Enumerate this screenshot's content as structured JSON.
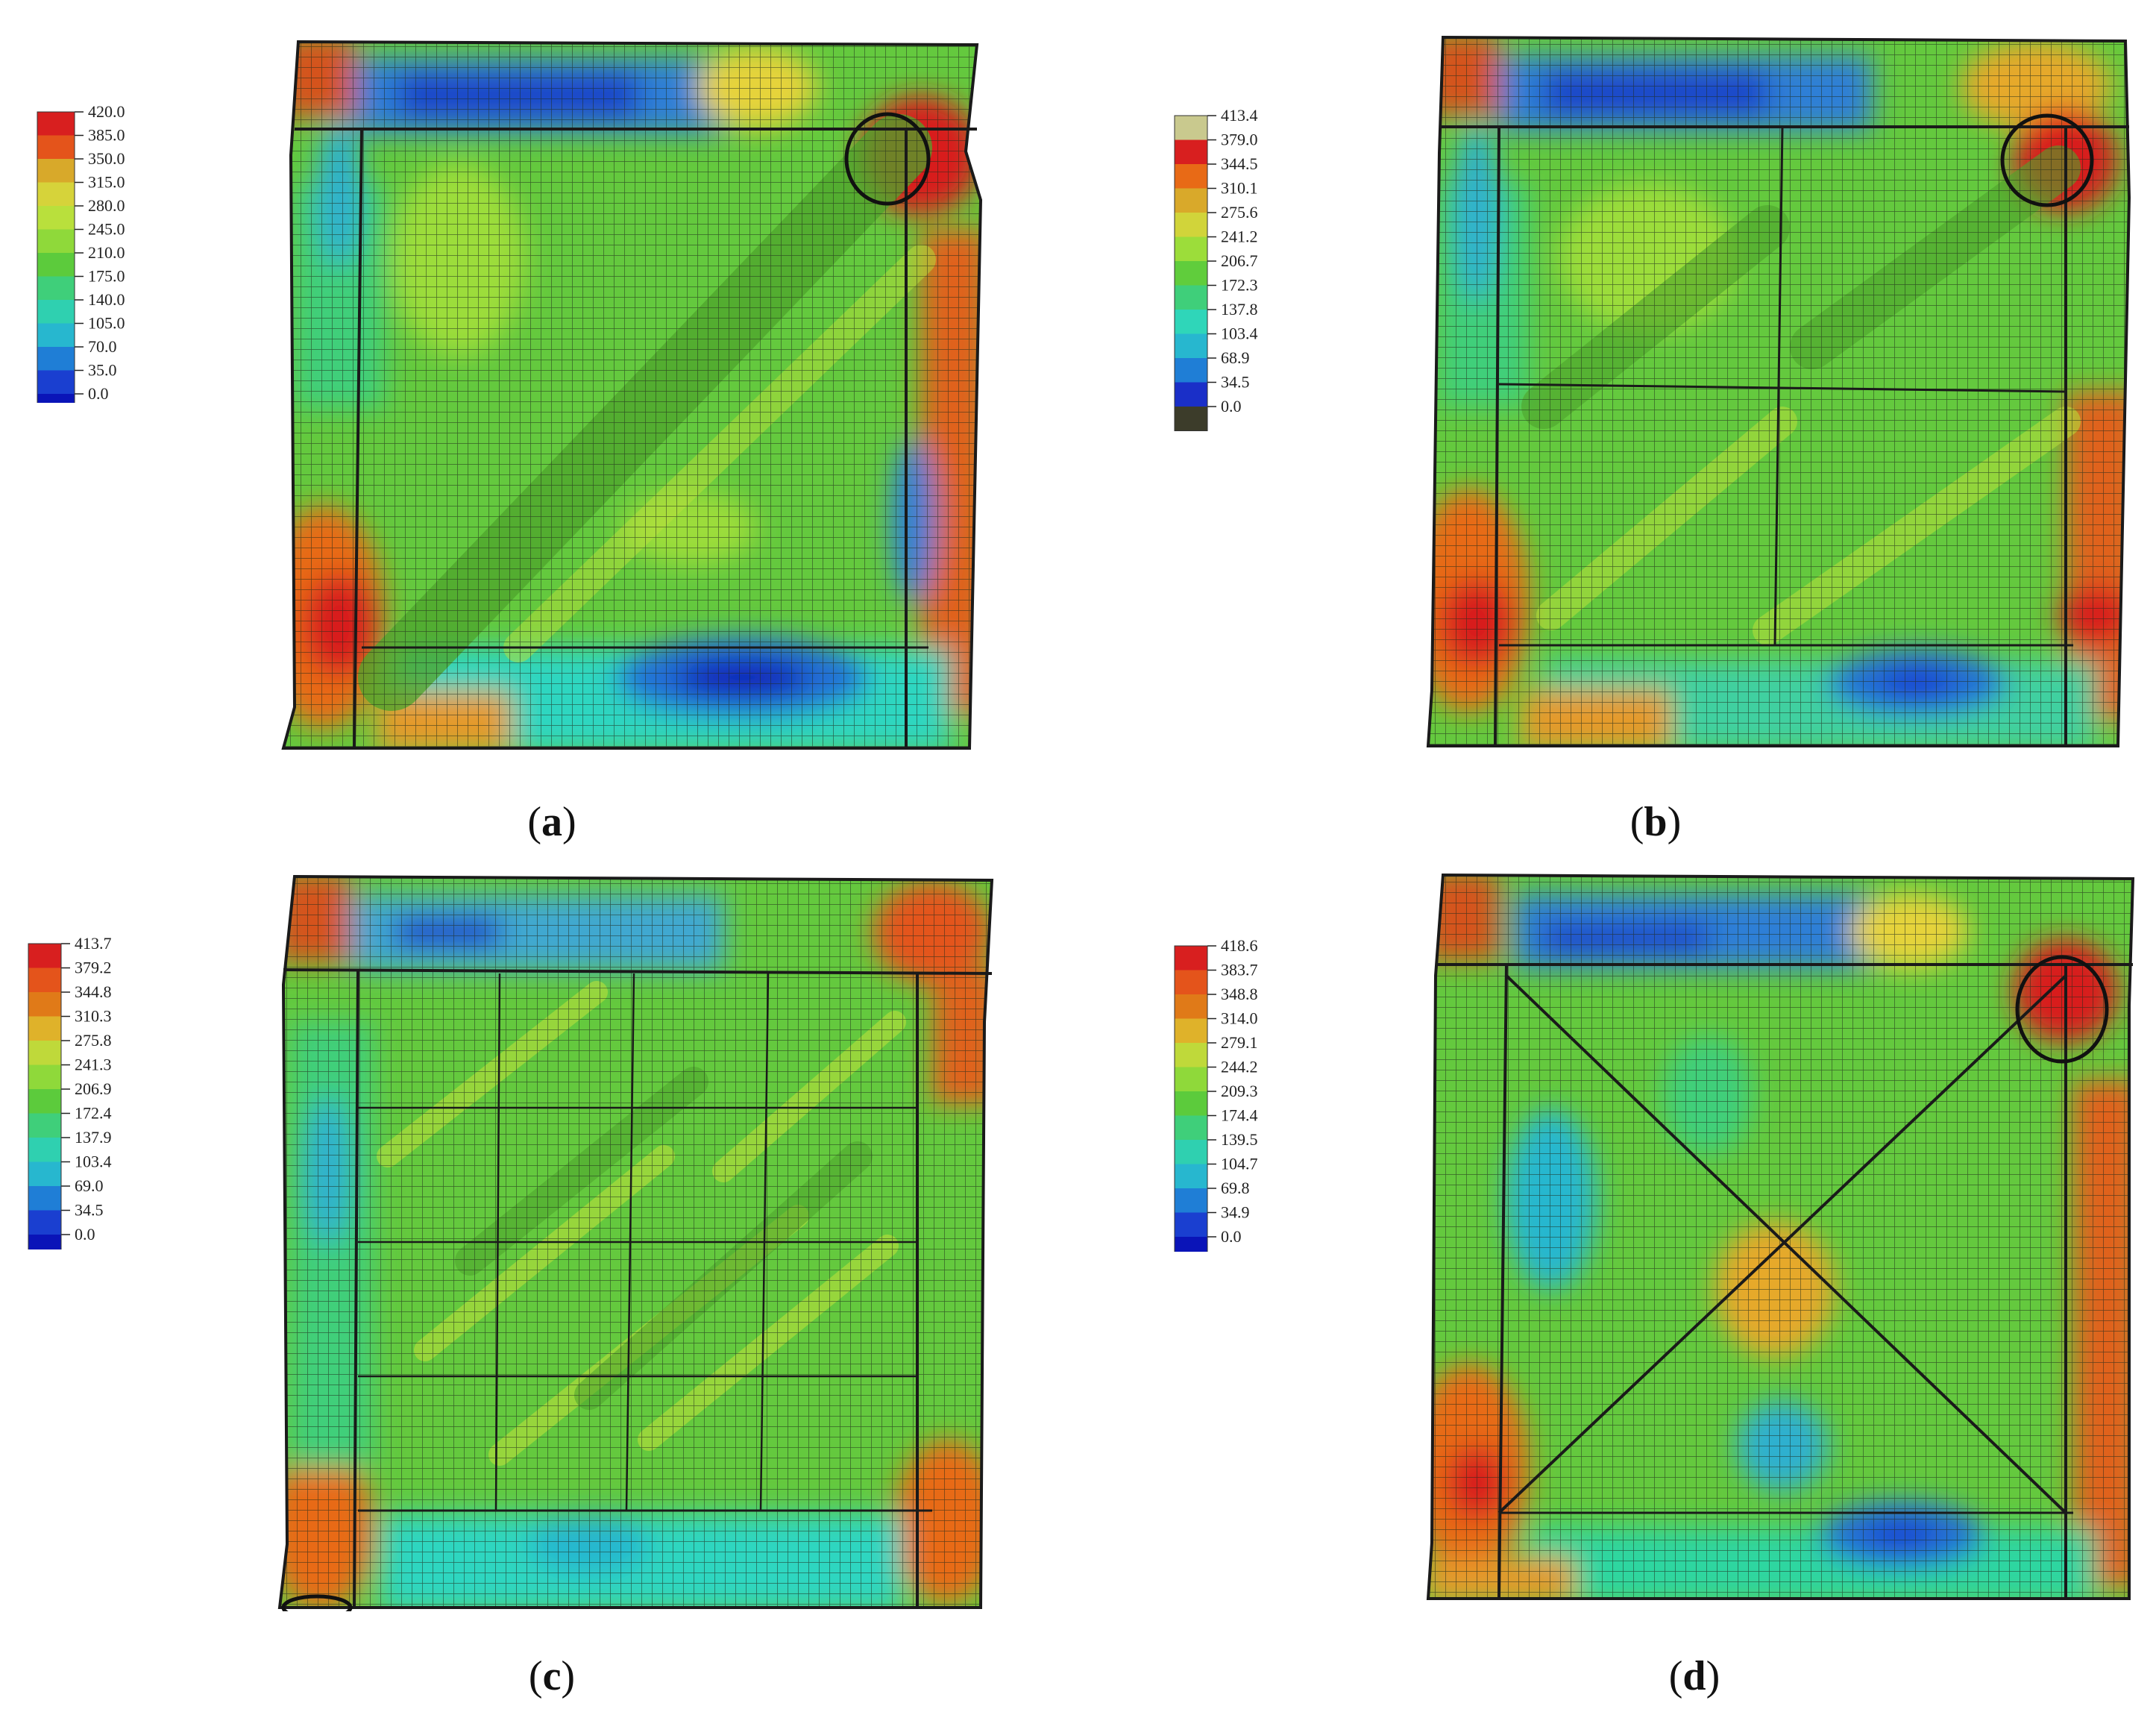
{
  "panels": [
    {
      "id": "a",
      "caption_open": "(",
      "caption_letter": "a",
      "caption_close": ")",
      "legend": [
        "420.0",
        "385.0",
        "350.0",
        "315.0",
        "280.0",
        "245.0",
        "210.0",
        "175.0",
        "140.0",
        "105.0",
        "70.0",
        "35.0",
        "0.0"
      ],
      "legend_colors": [
        "#d81f1f",
        "#e4541b",
        "#d8a92a",
        "#d6d33a",
        "#b9e03c",
        "#8fd93a",
        "#5ccb3c",
        "#3fcf7a",
        "#2fd0b0",
        "#27b7cf",
        "#1f7ed6",
        "#1a3fd0",
        "#0a14b8"
      ],
      "circle": "top-right",
      "interior": "diagonal"
    },
    {
      "id": "b",
      "caption_open": "(",
      "caption_letter": "b",
      "caption_close": ")",
      "legend": [
        "413.4",
        "379.0",
        "344.5",
        "310.1",
        "275.6",
        "241.2",
        "206.7",
        "172.3",
        "137.8",
        "103.4",
        "68.9",
        "34.5",
        "0.0"
      ],
      "legend_colors": [
        "#c9c98e",
        "#d81f1f",
        "#e86a16",
        "#d9a92a",
        "#d1d43a",
        "#9cdd3a",
        "#60cd3c",
        "#3fcf7a",
        "#2fd6b9",
        "#27b7cf",
        "#1f7ed6",
        "#1a2fc8",
        "#3c3c2a"
      ],
      "circle": "top-right",
      "interior": "grid2x2"
    },
    {
      "id": "c",
      "caption_open": "(",
      "caption_letter": "c",
      "caption_close": ")",
      "legend": [
        "413.7",
        "379.2",
        "344.8",
        "310.3",
        "275.8",
        "241.3",
        "206.9",
        "172.4",
        "137.9",
        "103.4",
        "69.0",
        "34.5",
        "0.0"
      ],
      "legend_colors": [
        "#d81f1f",
        "#e4541b",
        "#e07a18",
        "#dfb22a",
        "#bfd93a",
        "#8fd93a",
        "#5ccb3c",
        "#3fcf7a",
        "#2fd0b0",
        "#27b7cf",
        "#1f7ed6",
        "#1a3fd0",
        "#0a14b8"
      ],
      "circle": "bottom-left",
      "interior": "grid4x4"
    },
    {
      "id": "d",
      "caption_open": "(",
      "caption_letter": "d",
      "caption_close": ")",
      "legend": [
        "418.6",
        "383.7",
        "348.8",
        "314.0",
        "279.1",
        "244.2",
        "209.3",
        "174.4",
        "139.5",
        "104.7",
        "69.8",
        "34.9",
        "0.0"
      ],
      "legend_colors": [
        "#d81f1f",
        "#e4541b",
        "#e07a18",
        "#dfb22a",
        "#bfd93a",
        "#8fd93a",
        "#5ccb3c",
        "#3fcf7a",
        "#2fd0b0",
        "#27b7cf",
        "#1f7ed6",
        "#1a3fd0",
        "#0a14b8"
      ],
      "circle": "top-right",
      "interior": "cross"
    }
  ]
}
